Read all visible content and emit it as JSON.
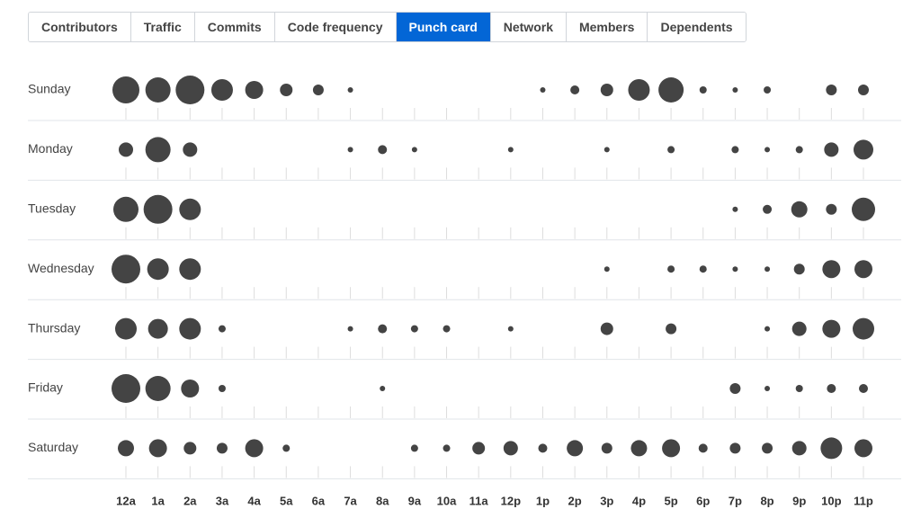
{
  "tabs": [
    {
      "label": "Contributors",
      "selected": false
    },
    {
      "label": "Traffic",
      "selected": false
    },
    {
      "label": "Commits",
      "selected": false
    },
    {
      "label": "Code frequency",
      "selected": false
    },
    {
      "label": "Punch card",
      "selected": true
    },
    {
      "label": "Network",
      "selected": false
    },
    {
      "label": "Members",
      "selected": false
    },
    {
      "label": "Dependents",
      "selected": false
    }
  ],
  "chart_data": {
    "type": "punchcard",
    "color": "#444444",
    "categories": [
      "12a",
      "1a",
      "2a",
      "3a",
      "4a",
      "5a",
      "6a",
      "7a",
      "8a",
      "9a",
      "10a",
      "11a",
      "12p",
      "1p",
      "2p",
      "3p",
      "4p",
      "5p",
      "6p",
      "7p",
      "8p",
      "9p",
      "10p",
      "11p"
    ],
    "series": [
      {
        "name": "Sunday",
        "values": [
          15,
          14,
          16,
          12,
          10,
          7,
          6,
          3,
          0,
          0,
          0,
          0,
          0,
          3,
          5,
          7,
          12,
          14,
          4,
          3,
          4,
          0,
          6,
          6
        ]
      },
      {
        "name": "Monday",
        "values": [
          8,
          14,
          8,
          0,
          0,
          0,
          0,
          3,
          5,
          3,
          0,
          0,
          3,
          0,
          0,
          3,
          0,
          4,
          0,
          4,
          3,
          4,
          8,
          11
        ]
      },
      {
        "name": "Tuesday",
        "values": [
          14,
          16,
          12,
          0,
          0,
          0,
          0,
          0,
          0,
          0,
          0,
          0,
          0,
          0,
          0,
          0,
          0,
          0,
          0,
          3,
          5,
          9,
          6,
          13
        ]
      },
      {
        "name": "Wednesday",
        "values": [
          16,
          12,
          12,
          0,
          0,
          0,
          0,
          0,
          0,
          0,
          0,
          0,
          0,
          0,
          0,
          3,
          0,
          4,
          4,
          3,
          3,
          6,
          10,
          10
        ]
      },
      {
        "name": "Thursday",
        "values": [
          12,
          11,
          12,
          4,
          0,
          0,
          0,
          3,
          5,
          4,
          4,
          0,
          3,
          0,
          0,
          7,
          0,
          6,
          0,
          0,
          3,
          8,
          10,
          12
        ]
      },
      {
        "name": "Friday",
        "values": [
          16,
          14,
          10,
          4,
          0,
          0,
          0,
          0,
          3,
          0,
          0,
          0,
          0,
          0,
          0,
          0,
          0,
          0,
          0,
          6,
          3,
          4,
          5,
          5
        ]
      },
      {
        "name": "Saturday",
        "values": [
          9,
          10,
          7,
          6,
          10,
          4,
          0,
          0,
          0,
          4,
          4,
          7,
          8,
          5,
          9,
          6,
          9,
          10,
          5,
          6,
          6,
          8,
          12,
          10
        ]
      }
    ]
  }
}
